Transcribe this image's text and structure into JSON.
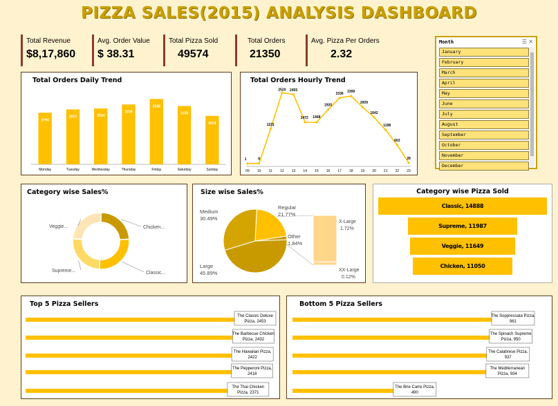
{
  "title": "PIZZA SALES(2015) ANALYSIS DASHBOARD",
  "kpis": [
    {
      "label": "Total Revenue",
      "value": "$8,17,860"
    },
    {
      "label": "Avg. Order Value",
      "value": "$ 38.31"
    },
    {
      "label": "Total Pizza Sold",
      "value": "49574"
    },
    {
      "label": "Total Orders",
      "value": "21350"
    },
    {
      "label": "Avg. Pizza Per Orders",
      "value": "2.32"
    }
  ],
  "slicer": {
    "title": "Month",
    "items": [
      "January",
      "February",
      "March",
      "April",
      "May",
      "June",
      "July",
      "August",
      "September",
      "October",
      "November",
      "December"
    ]
  },
  "chart_data": [
    {
      "type": "bar",
      "title": "Total Orders Daily Trend",
      "categories": [
        "Monday",
        "Tuesday",
        "Wednesday",
        "Thursday",
        "Friday",
        "Saturday",
        "Sunday"
      ],
      "values": [
        2794,
        2973,
        3024,
        3239,
        3538,
        3158,
        2624
      ],
      "color": "#FFC000"
    },
    {
      "type": "line",
      "title": "Total Orders Hourly Trend",
      "x": [
        "09",
        "10",
        "11",
        "12",
        "13",
        "14",
        "15",
        "16",
        "17",
        "18",
        "19",
        "20",
        "21",
        "22",
        "23"
      ],
      "values": [
        1,
        8,
        1231,
        2520,
        2455,
        1472,
        1468,
        1920,
        2336,
        2399,
        2009,
        1642,
        1198,
        663,
        28
      ],
      "color": "#FFC000"
    },
    {
      "type": "pie",
      "variant": "donut",
      "title": "Category wise Sales%",
      "labels": [
        "Chicken...",
        "Classic...",
        "Supreme...",
        "Veggie..."
      ],
      "values": [
        23.96,
        26.91,
        25.46,
        23.68
      ],
      "colors": [
        "#C99A00",
        "#FFC000",
        "#FFD966",
        "#FFE4B5"
      ]
    },
    {
      "type": "pie",
      "variant": "pie-of-pie",
      "title": "Size wise Sales%",
      "labels": [
        "Regular",
        "Other",
        "Large",
        "Medium"
      ],
      "values": [
        21.77,
        1.84,
        45.89,
        30.49
      ],
      "percent_labels": [
        "21.77%",
        "1,84%",
        "45.89%",
        "30.49%"
      ],
      "sub_labels": [
        "X-Large",
        "XX-Large"
      ],
      "sub_values": [
        1.72,
        0.12
      ],
      "sub_percent_labels": [
        "1.72%",
        "0.12%"
      ],
      "colors": [
        "#FFC000",
        "#C99A00",
        "#C99A00",
        "#D4A500"
      ],
      "sub_color": "#FFD68A"
    },
    {
      "type": "bar",
      "variant": "funnel",
      "title": "Category wise Pizza Sold",
      "categories": [
        "Classic",
        "Supreme",
        "Veggie",
        "Chicken"
      ],
      "values": [
        14888,
        11987,
        11649,
        11050
      ],
      "labels": [
        "Classic, 14888",
        "Supreme, 11987",
        "Veggie, 11649",
        "Chicken, 11050"
      ],
      "color": "#FFC000"
    },
    {
      "type": "bar",
      "orientation": "horizontal",
      "title": "Top 5 Pizza Sellers",
      "categories": [
        "The Classic Deluxe Pizza",
        "The Barbecue Chicken Pizza",
        "The Hawaiian Pizza",
        "The Pepperoni Pizza",
        "The Thai Chicken Pizza"
      ],
      "values": [
        2453,
        2432,
        2422,
        2418,
        2371
      ],
      "labels": [
        [
          "The Classic Deluxe",
          "Pizza, 2453"
        ],
        [
          "The Barbecue Chicken",
          "Pizza, 2432"
        ],
        [
          "The Hawaiian Pizza,",
          "2422"
        ],
        [
          "The Pepperoni Pizza,",
          "2418"
        ],
        [
          "The Thai Chicken",
          "Pizza, 2371"
        ]
      ],
      "color": "#FFC000"
    },
    {
      "type": "bar",
      "orientation": "horizontal",
      "title": "Bottom 5 Pizza Sellers",
      "categories": [
        "The Soppressata Pizza",
        "The Spinach Supreme Pizza",
        "The Calabrese Pizza",
        "The Mediterranean Pizza",
        "The Brie Carre Pizza"
      ],
      "values": [
        961,
        950,
        937,
        934,
        490
      ],
      "labels": [
        [
          "The Soppressata Pizza,",
          "961"
        ],
        [
          "The Spinach Supreme",
          "Pizza, 950"
        ],
        [
          "The Calabrese Pizza,",
          "937"
        ],
        [
          "The Mediterranean",
          "Pizza, 934"
        ],
        [
          "The Brie Carre Pizza,",
          "490"
        ]
      ],
      "color": "#FFC000"
    }
  ]
}
